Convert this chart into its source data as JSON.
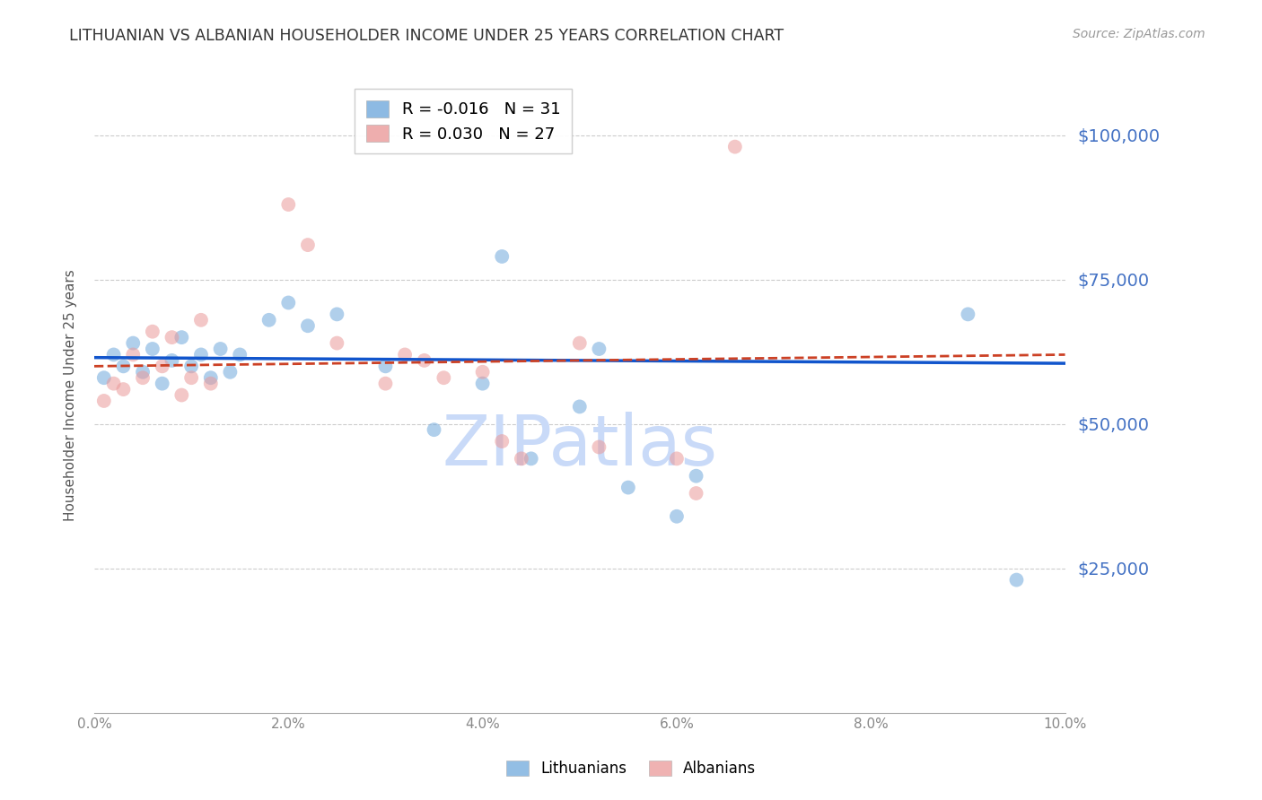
{
  "title": "LITHUANIAN VS ALBANIAN HOUSEHOLDER INCOME UNDER 25 YEARS CORRELATION CHART",
  "source": "Source: ZipAtlas.com",
  "ylabel": "Householder Income Under 25 years",
  "legend_labels": [
    "Lithuanians",
    "Albanians"
  ],
  "legend_R": [
    -0.016,
    0.03
  ],
  "legend_N": [
    31,
    27
  ],
  "blue_color": "#6fa8dc",
  "pink_color": "#ea9999",
  "blue_line_color": "#1155cc",
  "pink_line_color": "#cc4125",
  "title_color": "#333333",
  "tick_label_color": "#4472c4",
  "grid_color": "#cccccc",
  "watermark": "ZIPatlas",
  "watermark_color": "#c9daf8",
  "xlim": [
    0.0,
    0.1
  ],
  "ylim": [
    0,
    110000
  ],
  "yticks": [
    25000,
    50000,
    75000,
    100000
  ],
  "xticks": [
    0.0,
    0.02,
    0.04,
    0.06,
    0.08,
    0.1
  ],
  "lit_x": [
    0.001,
    0.002,
    0.003,
    0.004,
    0.005,
    0.006,
    0.007,
    0.008,
    0.009,
    0.01,
    0.011,
    0.012,
    0.013,
    0.014,
    0.015,
    0.018,
    0.02,
    0.022,
    0.025,
    0.03,
    0.035,
    0.04,
    0.042,
    0.045,
    0.05,
    0.052,
    0.055,
    0.06,
    0.062,
    0.09,
    0.095
  ],
  "lit_y": [
    58000,
    62000,
    60000,
    64000,
    59000,
    63000,
    57000,
    61000,
    65000,
    60000,
    62000,
    58000,
    63000,
    59000,
    62000,
    68000,
    71000,
    67000,
    69000,
    60000,
    49000,
    57000,
    79000,
    44000,
    53000,
    63000,
    39000,
    34000,
    41000,
    69000,
    23000
  ],
  "alb_x": [
    0.001,
    0.002,
    0.003,
    0.004,
    0.005,
    0.006,
    0.007,
    0.008,
    0.009,
    0.01,
    0.011,
    0.012,
    0.02,
    0.022,
    0.025,
    0.03,
    0.032,
    0.034,
    0.036,
    0.04,
    0.042,
    0.044,
    0.05,
    0.052,
    0.06,
    0.062,
    0.066
  ],
  "alb_y": [
    54000,
    57000,
    56000,
    62000,
    58000,
    66000,
    60000,
    65000,
    55000,
    58000,
    68000,
    57000,
    88000,
    81000,
    64000,
    57000,
    62000,
    61000,
    58000,
    59000,
    47000,
    44000,
    64000,
    46000,
    44000,
    38000,
    98000
  ],
  "marker_size": 130,
  "marker_alpha": 0.55,
  "background_color": "#ffffff",
  "lit_line_y0": 61500,
  "lit_line_y1": 60500,
  "alb_line_y0": 60000,
  "alb_line_y1": 62000
}
